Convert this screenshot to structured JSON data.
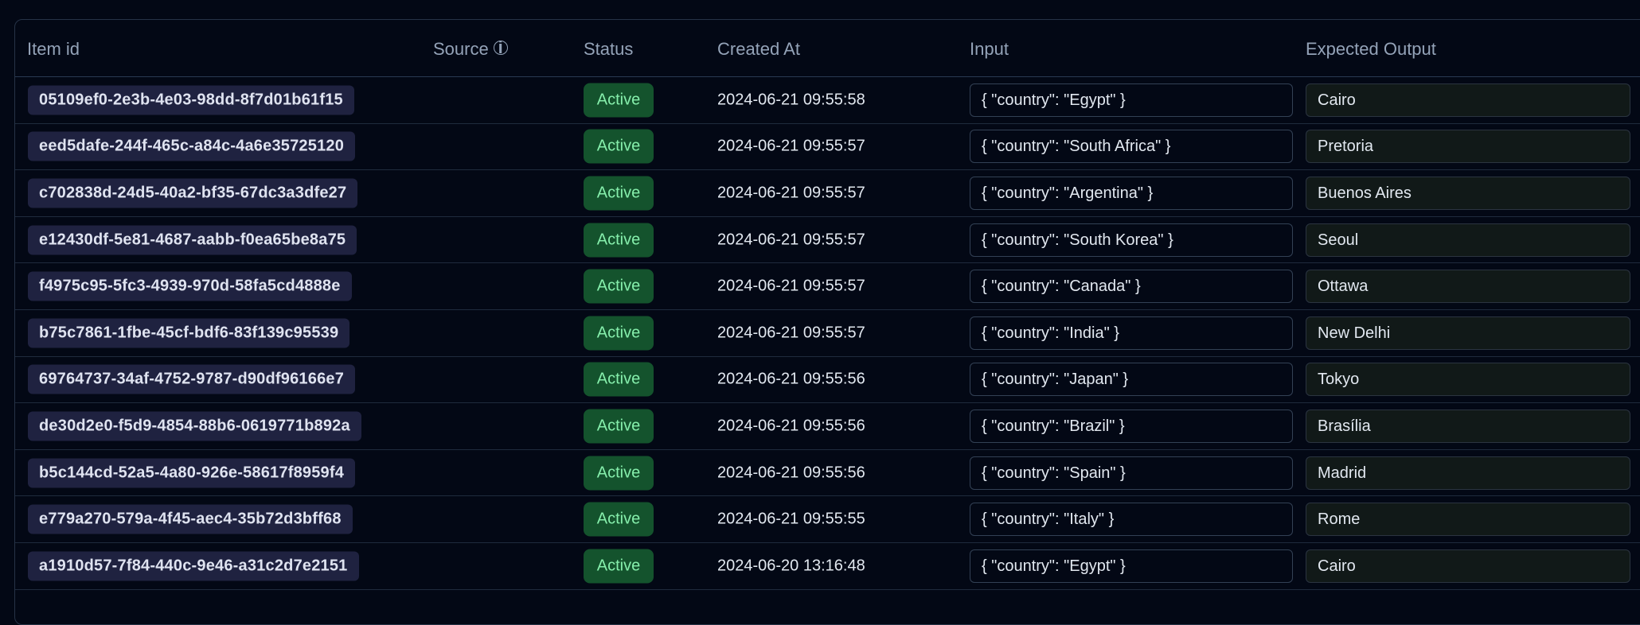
{
  "table": {
    "headers": {
      "item_id": "Item id",
      "source": "Source",
      "status": "Status",
      "created_at": "Created At",
      "input": "Input",
      "expected_output": "Expected Output"
    },
    "source_info_icon": "i",
    "rows": [
      {
        "id": "05109ef0-2e3b-4e03-98dd-8f7d01b61f15",
        "status": "Active",
        "created": "2024-06-21 09:55:58",
        "input": "{ \"country\": \"Egypt\" }",
        "output": "Cairo"
      },
      {
        "id": "eed5dafe-244f-465c-a84c-4a6e35725120",
        "status": "Active",
        "created": "2024-06-21 09:55:57",
        "input": "{ \"country\": \"South Africa\" }",
        "output": "Pretoria"
      },
      {
        "id": "c702838d-24d5-40a2-bf35-67dc3a3dfe27",
        "status": "Active",
        "created": "2024-06-21 09:55:57",
        "input": "{ \"country\": \"Argentina\" }",
        "output": "Buenos Aires"
      },
      {
        "id": "e12430df-5e81-4687-aabb-f0ea65be8a75",
        "status": "Active",
        "created": "2024-06-21 09:55:57",
        "input": "{ \"country\": \"South Korea\" }",
        "output": "Seoul"
      },
      {
        "id": "f4975c95-5fc3-4939-970d-58fa5cd4888e",
        "status": "Active",
        "created": "2024-06-21 09:55:57",
        "input": "{ \"country\": \"Canada\" }",
        "output": "Ottawa"
      },
      {
        "id": "b75c7861-1fbe-45cf-bdf6-83f139c95539",
        "status": "Active",
        "created": "2024-06-21 09:55:57",
        "input": "{ \"country\": \"India\" }",
        "output": "New Delhi"
      },
      {
        "id": "69764737-34af-4752-9787-d90df96166e7",
        "status": "Active",
        "created": "2024-06-21 09:55:56",
        "input": "{ \"country\": \"Japan\" }",
        "output": "Tokyo"
      },
      {
        "id": "de30d2e0-f5d9-4854-88b6-0619771b892a",
        "status": "Active",
        "created": "2024-06-21 09:55:56",
        "input": "{ \"country\": \"Brazil\" }",
        "output": "Brasília"
      },
      {
        "id": "b5c144cd-52a5-4a80-926e-58617f8959f4",
        "status": "Active",
        "created": "2024-06-21 09:55:56",
        "input": "{ \"country\": \"Spain\" }",
        "output": "Madrid"
      },
      {
        "id": "e779a270-579a-4f45-aec4-35b72d3bff68",
        "status": "Active",
        "created": "2024-06-21 09:55:55",
        "input": "{ \"country\": \"Italy\" }",
        "output": "Rome"
      },
      {
        "id": "a1910d57-7f84-440c-9e46-a31c2d7e2151",
        "status": "Active",
        "created": "2024-06-20 13:16:48",
        "input": "{ \"country\": \"Egypt\" }",
        "output": "Cairo"
      }
    ]
  }
}
